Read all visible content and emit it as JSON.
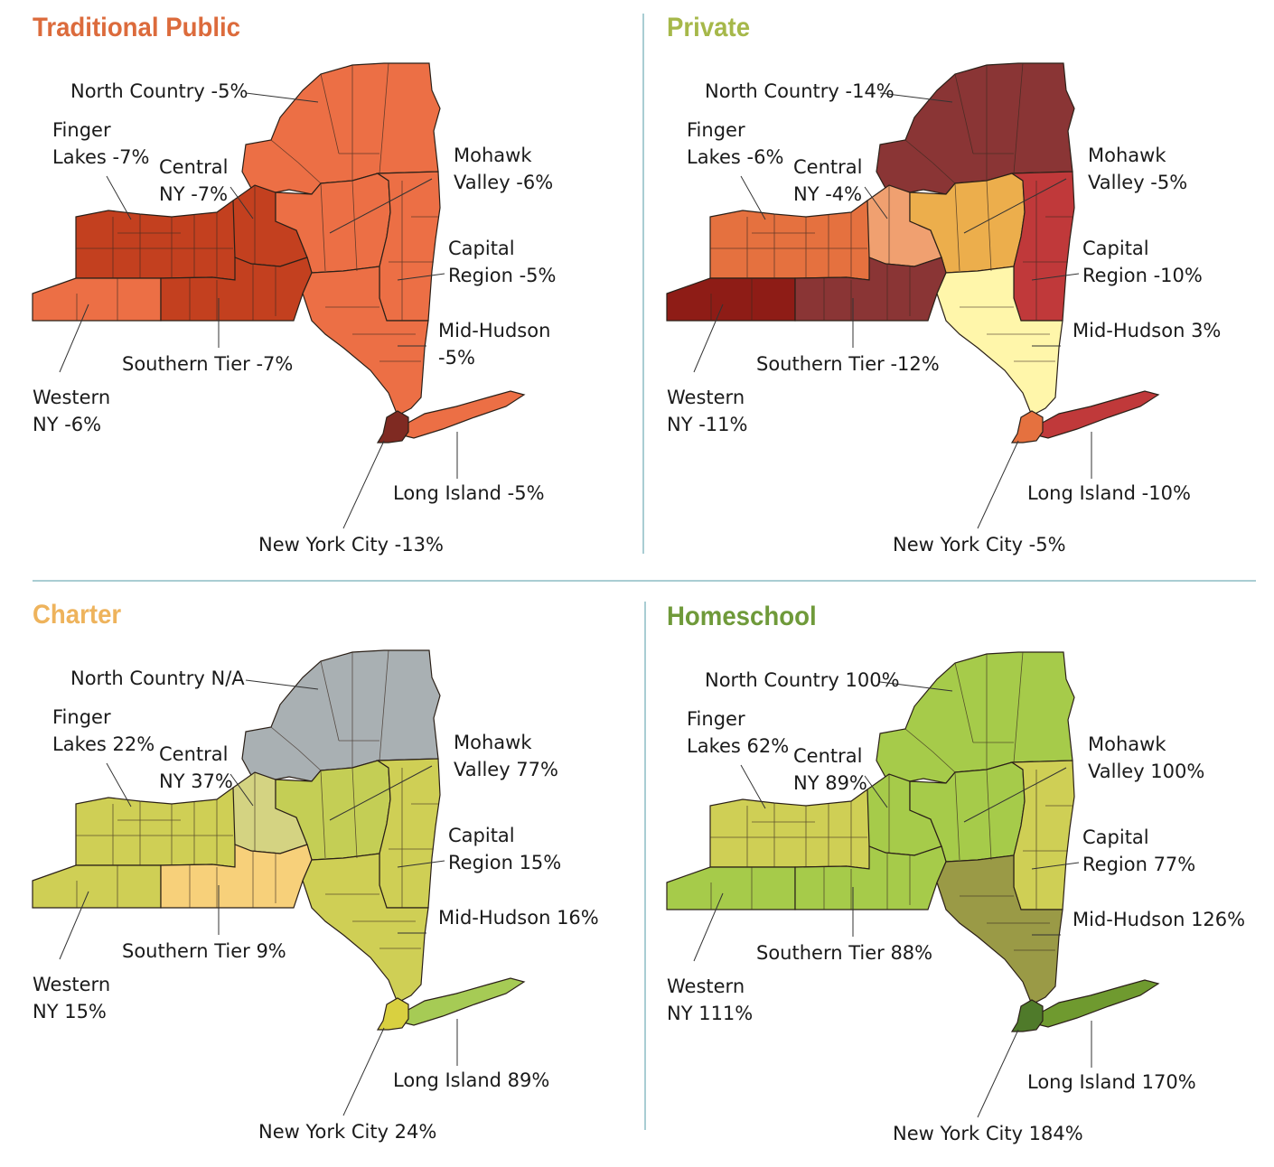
{
  "panels": [
    {
      "title": "Traditional Public",
      "title_color": "#dc6b3c",
      "regions": {
        "western": {
          "label1": "Western",
          "label2": "NY -6%",
          "value": "-6%",
          "color": "#ec6f45"
        },
        "finger_lakes": {
          "label1": "Finger",
          "label2": "Lakes -7%",
          "value": "-7%",
          "color": "#c3401f"
        },
        "central": {
          "label1": "Central",
          "label2": "NY -7%",
          "value": "-7%",
          "color": "#c3401f"
        },
        "southern_tier": {
          "label1": "Southern Tier -7%",
          "value": "-7%",
          "color": "#c3401f"
        },
        "north_country": {
          "label1": "North Country -5%",
          "value": "-5%",
          "color": "#ec6f45"
        },
        "mohawk": {
          "label1": "Mohawk",
          "label2": "Valley -6%",
          "value": "-6%",
          "color": "#ec6f45"
        },
        "capital": {
          "label1": "Capital",
          "label2": "Region -5%",
          "value": "-5%",
          "color": "#ec6f45"
        },
        "mid_hudson": {
          "label1": "Mid-Hudson",
          "label2": "-5%",
          "value": "-5%",
          "color": "#ec6f45"
        },
        "long_island": {
          "label1": "Long Island -5%",
          "value": "-5%",
          "color": "#ec6f45"
        },
        "nyc": {
          "label1": "New York City -13%",
          "value": "-13%",
          "color": "#7f2a22"
        }
      }
    },
    {
      "title": "Private",
      "title_color": "#a6b84a",
      "regions": {
        "western": {
          "label1": "Western",
          "label2": "NY -11%",
          "value": "-11%",
          "color": "#8e1c16"
        },
        "finger_lakes": {
          "label1": "Finger",
          "label2": "Lakes -6%",
          "value": "-6%",
          "color": "#e5713f"
        },
        "central": {
          "label1": "Central",
          "label2": "NY -4%",
          "value": "-4%",
          "color": "#f0a070"
        },
        "southern_tier": {
          "label1": "Southern Tier -12%",
          "value": "-12%",
          "color": "#8a3535"
        },
        "north_country": {
          "label1": "North Country -14%",
          "value": "-14%",
          "color": "#8a3535"
        },
        "mohawk": {
          "label1": "Mohawk",
          "label2": "Valley -5%",
          "value": "-5%",
          "color": "#ecae4c"
        },
        "capital": {
          "label1": "Capital",
          "label2": "Region -10%",
          "value": "-10%",
          "color": "#c0393a"
        },
        "mid_hudson": {
          "label1": "Mid-Hudson 3%",
          "value": "3%",
          "color": "#fff6aa"
        },
        "long_island": {
          "label1": "Long Island -10%",
          "value": "-10%",
          "color": "#c0393a"
        },
        "nyc": {
          "label1": "New York City -5%",
          "value": "-5%",
          "color": "#e5713f"
        }
      }
    },
    {
      "title": "Charter",
      "title_color": "#eeb35c",
      "regions": {
        "western": {
          "label1": "Western",
          "label2": "NY 15%",
          "value": "15%",
          "color": "#cfcf55"
        },
        "finger_lakes": {
          "label1": "Finger",
          "label2": "Lakes 22%",
          "value": "22%",
          "color": "#cfcf55"
        },
        "central": {
          "label1": "Central",
          "label2": "NY 37%",
          "value": "37%",
          "color": "#d4d382"
        },
        "southern_tier": {
          "label1": "Southern Tier 9%",
          "value": "9%",
          "color": "#f7d07a"
        },
        "north_country": {
          "label1": "North Country N/A",
          "value": "N/A",
          "color": "#a9b0b3"
        },
        "mohawk": {
          "label1": "Mohawk",
          "label2": "Valley 77%",
          "value": "77%",
          "color": "#c4ce55"
        },
        "capital": {
          "label1": "Capital",
          "label2": "Region 15%",
          "value": "15%",
          "color": "#cfcf55"
        },
        "mid_hudson": {
          "label1": "Mid-Hudson 16%",
          "value": "16%",
          "color": "#cfcf55"
        },
        "long_island": {
          "label1": "Long Island 89%",
          "value": "89%",
          "color": "#a6cb55"
        },
        "nyc": {
          "label1": "New York City 24%",
          "value": "24%",
          "color": "#d9d040"
        }
      }
    },
    {
      "title": "Homeschool",
      "title_color": "#6f9a3a",
      "regions": {
        "western": {
          "label1": "Western",
          "label2": "NY 111%",
          "value": "111%",
          "color": "#a6cb4a"
        },
        "finger_lakes": {
          "label1": "Finger",
          "label2": "Lakes 62%",
          "value": "62%",
          "color": "#cfcf55"
        },
        "central": {
          "label1": "Central",
          "label2": "NY 89%",
          "value": "89%",
          "color": "#a6cb4a"
        },
        "southern_tier": {
          "label1": "Southern Tier 88%",
          "value": "88%",
          "color": "#a6cb4a"
        },
        "north_country": {
          "label1": "North Country 100%",
          "value": "100%",
          "color": "#a6cb4a"
        },
        "mohawk": {
          "label1": "Mohawk",
          "label2": "Valley 100%",
          "value": "100%",
          "color": "#a6cb4a"
        },
        "capital": {
          "label1": "Capital",
          "label2": "Region 77%",
          "value": "77%",
          "color": "#cfcf55"
        },
        "mid_hudson": {
          "label1": "Mid-Hudson 126%",
          "value": "126%",
          "color": "#9a9a46"
        },
        "long_island": {
          "label1": "Long Island 170%",
          "value": "170%",
          "color": "#6f9a2f"
        },
        "nyc": {
          "label1": "New York City 184%",
          "value": "184%",
          "color": "#4f7a2a"
        }
      }
    }
  ]
}
